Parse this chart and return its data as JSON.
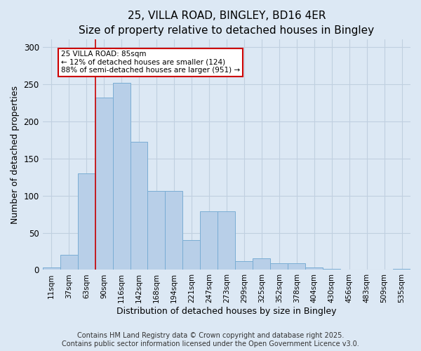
{
  "title_line1": "25, VILLA ROAD, BINGLEY, BD16 4ER",
  "title_line2": "Size of property relative to detached houses in Bingley",
  "xlabel": "Distribution of detached houses by size in Bingley",
  "ylabel": "Number of detached properties",
  "categories": [
    "11sqm",
    "37sqm",
    "63sqm",
    "90sqm",
    "116sqm",
    "142sqm",
    "168sqm",
    "194sqm",
    "221sqm",
    "247sqm",
    "273sqm",
    "299sqm",
    "325sqm",
    "352sqm",
    "378sqm",
    "404sqm",
    "430sqm",
    "456sqm",
    "483sqm",
    "509sqm",
    "535sqm"
  ],
  "values": [
    3,
    20,
    130,
    232,
    252,
    172,
    106,
    106,
    40,
    79,
    79,
    12,
    16,
    9,
    9,
    3,
    1,
    0,
    0,
    0,
    1
  ],
  "bar_color": "#b8cfe8",
  "bar_edge_color": "#7aadd4",
  "red_line_index": 3,
  "annotation_text": "25 VILLA ROAD: 85sqm\n← 12% of detached houses are smaller (124)\n88% of semi-detached houses are larger (951) →",
  "annotation_box_color": "#ffffff",
  "annotation_box_edge_color": "#cc0000",
  "red_line_color": "#cc0000",
  "ylim": [
    0,
    310
  ],
  "yticks": [
    0,
    50,
    100,
    150,
    200,
    250,
    300
  ],
  "grid_color": "#c0d0e0",
  "background_color": "#dce8f4",
  "footer_line1": "Contains HM Land Registry data © Crown copyright and database right 2025.",
  "footer_line2": "Contains public sector information licensed under the Open Government Licence v3.0.",
  "title_fontsize": 11,
  "subtitle_fontsize": 9.5,
  "axis_label_fontsize": 9,
  "tick_fontsize": 7.5,
  "footer_fontsize": 7
}
